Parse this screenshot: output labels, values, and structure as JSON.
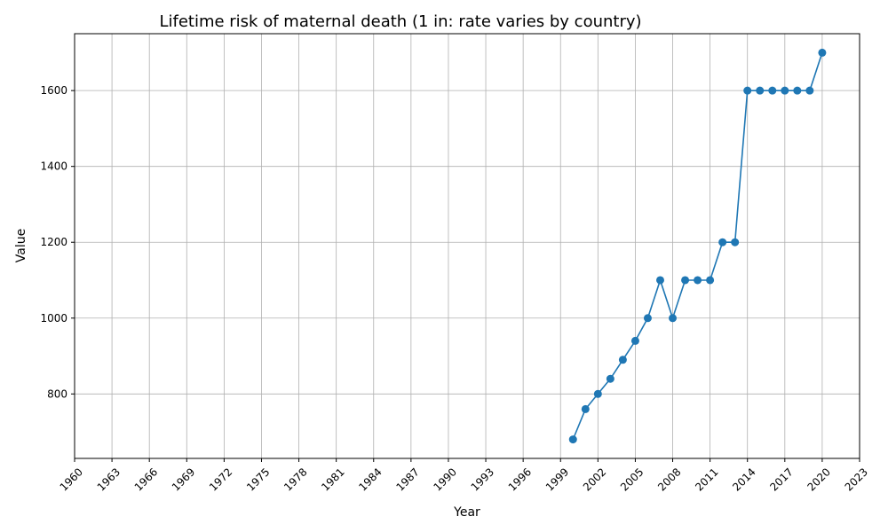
{
  "chart_data": {
    "type": "line",
    "title": "Lifetime risk of maternal death (1 in: rate varies by country)",
    "xlabel": "Year",
    "ylabel": "Value",
    "xlim": [
      1960,
      2023
    ],
    "ylim": [
      630,
      1750
    ],
    "x_ticks": [
      1960,
      1963,
      1966,
      1969,
      1972,
      1975,
      1978,
      1981,
      1984,
      1987,
      1990,
      1993,
      1996,
      1999,
      2002,
      2005,
      2008,
      2011,
      2014,
      2017,
      2020,
      2023
    ],
    "y_ticks": [
      800,
      1000,
      1200,
      1400,
      1600
    ],
    "grid": true,
    "color": "#1f77b4",
    "x": [
      2000,
      2001,
      2002,
      2003,
      2004,
      2005,
      2006,
      2007,
      2008,
      2009,
      2010,
      2011,
      2012,
      2013,
      2014,
      2015,
      2016,
      2017,
      2018,
      2019,
      2020
    ],
    "y": [
      680,
      760,
      800,
      840,
      890,
      940,
      1000,
      1100,
      1000,
      1100,
      1100,
      1100,
      1200,
      1200,
      1600,
      1600,
      1600,
      1600,
      1600,
      1600,
      1700
    ]
  }
}
